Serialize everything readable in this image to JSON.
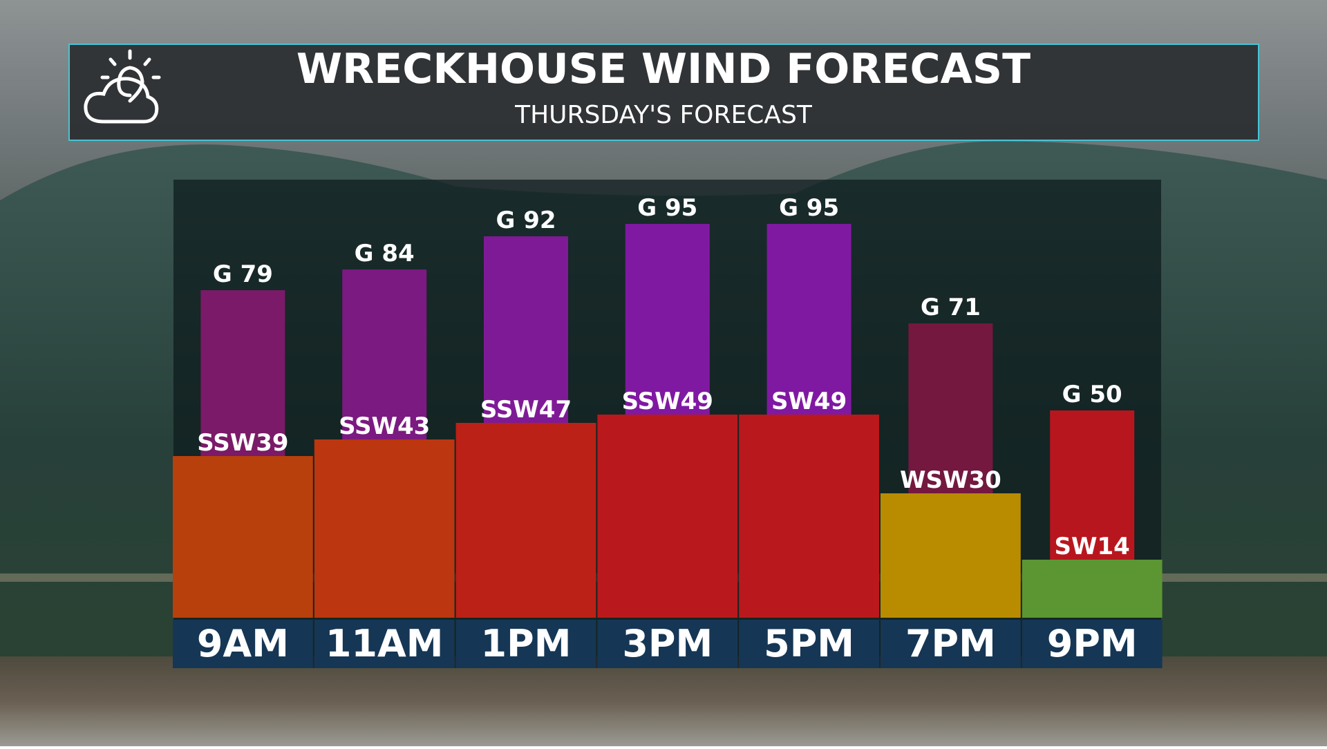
{
  "chart_data": {
    "type": "bar",
    "title": "WRECKHOUSE WIND FORECAST",
    "subtitle": "THURSDAY'S FORECAST",
    "categories": [
      "9AM",
      "11AM",
      "1PM",
      "3PM",
      "5PM",
      "7PM",
      "9PM"
    ],
    "series": [
      {
        "values": [
          79,
          84,
          92,
          95,
          95,
          71,
          50
        ],
        "value_labels": [
          "G 79",
          "G 84",
          "G 92",
          "G 95",
          "G 95",
          "G 71",
          "G 50"
        ],
        "colors": [
          "#7a1a68",
          "#7b1a80",
          "#7f1a96",
          "#8019a2",
          "#8019a2",
          "#74183f",
          "#b8161e"
        ]
      },
      {
        "values": [
          39,
          43,
          47,
          49,
          49,
          30,
          14
        ],
        "value_labels": [
          "SSW39",
          "SSW43",
          "SSW47",
          "SSW49",
          "SW49",
          "WSW30",
          "SW14"
        ],
        "colors": [
          "#b8400c",
          "#bc3610",
          "#bb2116",
          "#b9191d",
          "#b9191d",
          "#b98c00",
          "#5b9633"
        ]
      }
    ]
  }
}
